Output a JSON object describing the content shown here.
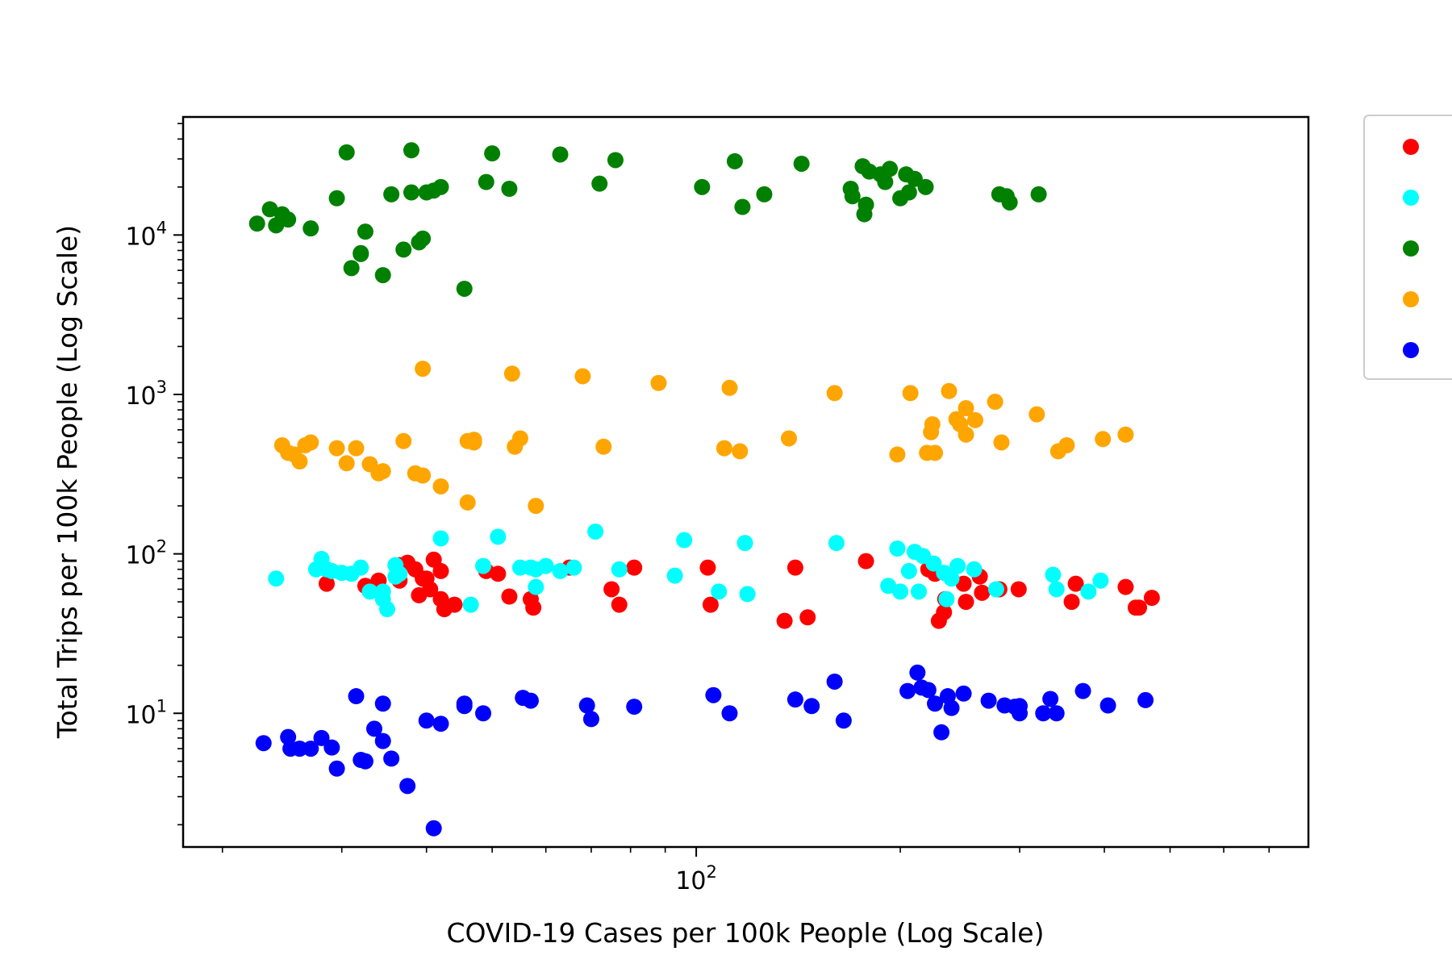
{
  "chart_data": {
    "type": "scatter",
    "title": "",
    "xlabel": "COVID-19 Cases per 100k People (Log Scale)",
    "ylabel": "Total Trips per 100k People (Log Scale)",
    "xscale": "log",
    "yscale": "log",
    "xlim": [
      17.5,
      800
    ],
    "ylim": [
      1.45,
      55000
    ],
    "x_ticks": [
      {
        "value": 100,
        "base": "10",
        "exp": "2"
      }
    ],
    "y_ticks": [
      {
        "value": 10,
        "base": "10",
        "exp": "1"
      },
      {
        "value": 100,
        "base": "10",
        "exp": "2"
      },
      {
        "value": 1000,
        "base": "10",
        "exp": "3"
      },
      {
        "value": 10000,
        "base": "10",
        "exp": "4"
      }
    ],
    "grid": false,
    "legend": {
      "position": "right, outside plot",
      "entries_visible": false
    },
    "series": [
      {
        "color": "#ff0000",
        "points": [
          [
            28.5,
            65
          ],
          [
            32.5,
            63
          ],
          [
            34,
            68
          ],
          [
            36.5,
            85
          ],
          [
            37.5,
            88
          ],
          [
            36.5,
            68
          ],
          [
            38.5,
            80
          ],
          [
            39.5,
            70
          ],
          [
            39,
            55
          ],
          [
            40,
            70
          ],
          [
            41,
            92
          ],
          [
            40.5,
            60
          ],
          [
            42,
            78
          ],
          [
            42,
            52
          ],
          [
            42.5,
            45
          ],
          [
            44,
            48
          ],
          [
            49,
            78
          ],
          [
            51,
            75
          ],
          [
            53,
            54
          ],
          [
            57,
            52
          ],
          [
            57.5,
            46
          ],
          [
            65,
            82
          ],
          [
            75,
            60
          ],
          [
            77,
            48
          ],
          [
            81,
            82
          ],
          [
            104,
            82
          ],
          [
            105,
            48
          ],
          [
            135,
            38
          ],
          [
            140,
            82
          ],
          [
            146,
            40
          ],
          [
            178,
            90
          ],
          [
            220,
            80
          ],
          [
            225,
            75
          ],
          [
            228,
            38
          ],
          [
            232,
            43
          ],
          [
            233,
            52
          ],
          [
            248,
            65
          ],
          [
            250,
            50
          ],
          [
            262,
            72
          ],
          [
            264,
            57
          ],
          [
            280,
            60
          ],
          [
            299,
            60
          ],
          [
            358,
            50
          ],
          [
            363,
            65
          ],
          [
            430,
            62
          ],
          [
            445,
            46
          ],
          [
            450,
            46
          ],
          [
            470,
            53
          ]
        ]
      },
      {
        "color": "#00ffff",
        "points": [
          [
            24,
            70
          ],
          [
            27.5,
            80
          ],
          [
            28,
            93
          ],
          [
            28.5,
            80
          ],
          [
            29,
            78
          ],
          [
            30,
            76
          ],
          [
            31,
            75
          ],
          [
            32,
            82
          ],
          [
            33,
            58
          ],
          [
            34.5,
            58
          ],
          [
            35,
            45
          ],
          [
            34.5,
            52
          ],
          [
            36,
            85
          ],
          [
            36.5,
            75
          ],
          [
            36,
            72
          ],
          [
            42,
            125
          ],
          [
            46.5,
            48
          ],
          [
            48.5,
            84
          ],
          [
            51,
            128
          ],
          [
            55,
            82
          ],
          [
            57,
            82
          ],
          [
            58,
            80
          ],
          [
            58,
            62
          ],
          [
            60,
            84
          ],
          [
            63,
            78
          ],
          [
            66,
            82
          ],
          [
            71,
            138
          ],
          [
            77,
            80
          ],
          [
            93,
            73
          ],
          [
            96,
            122
          ],
          [
            108,
            58
          ],
          [
            118,
            117
          ],
          [
            119,
            56
          ],
          [
            161,
            117
          ],
          [
            192,
            63
          ],
          [
            198,
            108
          ],
          [
            200,
            58
          ],
          [
            206,
            78
          ],
          [
            210,
            103
          ],
          [
            213,
            58
          ],
          [
            216,
            97
          ],
          [
            224,
            87
          ],
          [
            232,
            76
          ],
          [
            234,
            52
          ],
          [
            238,
            70
          ],
          [
            243,
            84
          ],
          [
            257,
            80
          ],
          [
            277,
            60
          ],
          [
            336,
            74
          ],
          [
            340,
            60
          ],
          [
            379,
            58
          ],
          [
            395,
            68
          ]
        ]
      },
      {
        "color": "#008000",
        "points": [
          [
            22.5,
            11800
          ],
          [
            23.5,
            14500
          ],
          [
            24,
            11500
          ],
          [
            24.5,
            13500
          ],
          [
            25,
            12500
          ],
          [
            27,
            11000
          ],
          [
            29.5,
            17000
          ],
          [
            30.5,
            33000
          ],
          [
            31,
            6200
          ],
          [
            32,
            7700
          ],
          [
            32,
            7600
          ],
          [
            32.5,
            10500
          ],
          [
            34.5,
            5600
          ],
          [
            35.5,
            18000
          ],
          [
            37,
            8100
          ],
          [
            38,
            18500
          ],
          [
            38,
            34000
          ],
          [
            39,
            9000
          ],
          [
            39.5,
            9500
          ],
          [
            40,
            18500
          ],
          [
            41,
            19000
          ],
          [
            42,
            20000
          ],
          [
            45.5,
            4600
          ],
          [
            49,
            21500
          ],
          [
            50,
            32500
          ],
          [
            53,
            19500
          ],
          [
            63,
            32000
          ],
          [
            72,
            21000
          ],
          [
            76,
            29500
          ],
          [
            102,
            20000
          ],
          [
            114,
            29000
          ],
          [
            117,
            15000
          ],
          [
            126,
            18000
          ],
          [
            143,
            28000
          ],
          [
            169,
            19500
          ],
          [
            170,
            17500
          ],
          [
            176,
            27000
          ],
          [
            177,
            13500
          ],
          [
            178,
            15500
          ],
          [
            180,
            25000
          ],
          [
            187,
            24000
          ],
          [
            190,
            21500
          ],
          [
            193,
            26000
          ],
          [
            200,
            17000
          ],
          [
            204,
            24000
          ],
          [
            206,
            18500
          ],
          [
            210,
            22500
          ],
          [
            218,
            20000
          ],
          [
            280,
            18000
          ],
          [
            287,
            17500
          ],
          [
            290,
            16000
          ],
          [
            320,
            18000
          ]
        ]
      },
      {
        "color": "#ffa500",
        "points": [
          [
            24.5,
            480
          ],
          [
            25,
            430
          ],
          [
            25.5,
            420
          ],
          [
            26,
            380
          ],
          [
            26.5,
            480
          ],
          [
            27,
            500
          ],
          [
            29.5,
            460
          ],
          [
            30.5,
            370
          ],
          [
            31.5,
            460
          ],
          [
            33,
            365
          ],
          [
            34,
            320
          ],
          [
            34.5,
            330
          ],
          [
            37,
            510
          ],
          [
            38.5,
            320
          ],
          [
            39.5,
            310
          ],
          [
            39.5,
            1450
          ],
          [
            42,
            265
          ],
          [
            46,
            210
          ],
          [
            46,
            510
          ],
          [
            47,
            500
          ],
          [
            47,
            520
          ],
          [
            53.5,
            1350
          ],
          [
            54,
            470
          ],
          [
            55,
            530
          ],
          [
            58,
            200
          ],
          [
            68,
            1300
          ],
          [
            73,
            470
          ],
          [
            88,
            1180
          ],
          [
            110,
            460
          ],
          [
            112,
            1100
          ],
          [
            116,
            440
          ],
          [
            137,
            530
          ],
          [
            160,
            1020
          ],
          [
            198,
            420
          ],
          [
            207,
            1020
          ],
          [
            219,
            430
          ],
          [
            222,
            580
          ],
          [
            223,
            650
          ],
          [
            225,
            430
          ],
          [
            236,
            1050
          ],
          [
            242,
            700
          ],
          [
            245,
            650
          ],
          [
            250,
            820
          ],
          [
            250,
            560
          ],
          [
            258,
            690
          ],
          [
            276,
            900
          ],
          [
            282,
            500
          ],
          [
            318,
            750
          ],
          [
            342,
            440
          ],
          [
            352,
            480
          ],
          [
            398,
            525
          ],
          [
            430,
            560
          ]
        ]
      },
      {
        "color": "#0000ff",
        "points": [
          [
            23,
            6.5
          ],
          [
            25,
            7.1
          ],
          [
            25.2,
            6
          ],
          [
            26,
            6
          ],
          [
            27,
            6
          ],
          [
            28,
            7
          ],
          [
            29,
            6.1
          ],
          [
            29.5,
            4.5
          ],
          [
            31.5,
            12.8
          ],
          [
            32,
            5.1
          ],
          [
            32.5,
            5
          ],
          [
            33.5,
            8
          ],
          [
            34.5,
            11.5
          ],
          [
            34.5,
            6.7
          ],
          [
            35.5,
            5.2
          ],
          [
            37.5,
            3.5
          ],
          [
            40,
            9
          ],
          [
            41,
            1.9
          ],
          [
            42,
            8.6
          ],
          [
            45.5,
            11.1
          ],
          [
            45.5,
            11.5
          ],
          [
            48.5,
            10
          ],
          [
            55.5,
            12.5
          ],
          [
            57,
            12
          ],
          [
            69,
            11.2
          ],
          [
            70,
            9.2
          ],
          [
            81,
            11
          ],
          [
            106,
            13
          ],
          [
            112,
            10
          ],
          [
            140,
            12.2
          ],
          [
            148,
            11.1
          ],
          [
            160,
            15.8
          ],
          [
            165,
            9
          ],
          [
            205,
            13.8
          ],
          [
            212,
            18
          ],
          [
            215,
            14.5
          ],
          [
            220,
            14
          ],
          [
            225,
            11.5
          ],
          [
            230,
            7.6
          ],
          [
            235,
            12.8
          ],
          [
            238,
            10.8
          ],
          [
            248,
            13.3
          ],
          [
            270,
            12
          ],
          [
            285,
            11.2
          ],
          [
            295,
            11
          ],
          [
            300,
            10
          ],
          [
            300,
            11.1
          ],
          [
            325,
            10
          ],
          [
            333,
            12.3
          ],
          [
            340,
            10
          ],
          [
            372,
            13.8
          ],
          [
            405,
            11.2
          ],
          [
            460,
            12.1
          ]
        ]
      }
    ]
  }
}
